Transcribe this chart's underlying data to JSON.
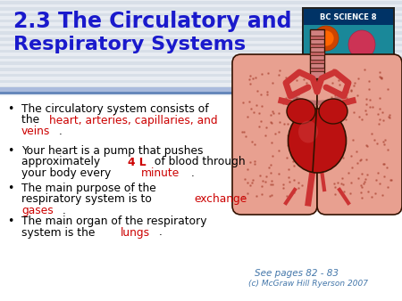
{
  "title_line1": "2.3 The Circulatory and",
  "title_line2": "Respiratory Systems",
  "title_color": "#1a1acc",
  "title_fontsize": 17,
  "bg_color": "#f0f4f8",
  "header_bg_color": "#e8eef5",
  "footer_text1": "See pages 82 - 83",
  "footer_text2": "(c) McGraw Hill Ryerson 2007",
  "footer_color": "#4477aa",
  "bullet_fontsize": 8.8,
  "bullet_color": "#000000",
  "red_color": "#cc0000"
}
